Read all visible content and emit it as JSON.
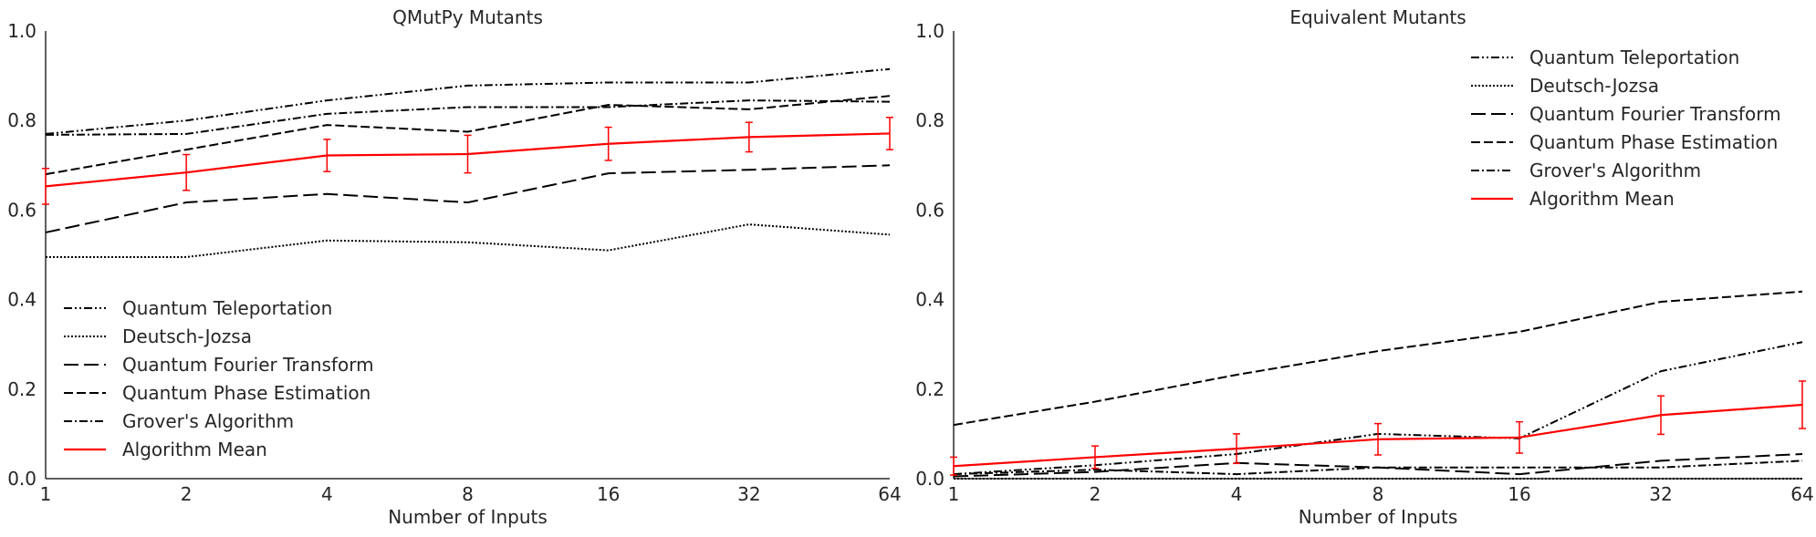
{
  "chart_data": [
    {
      "type": "line",
      "title": "QMutPy Mutants",
      "xlabel": "Number of Inputs",
      "ylabel": "",
      "x": [
        1,
        2,
        4,
        8,
        16,
        32,
        64
      ],
      "x_scale": "log2",
      "ylim": [
        0.0,
        1.0
      ],
      "yticks": [
        "0.0",
        "0.2",
        "0.4",
        "0.6",
        "0.8",
        "1.0"
      ],
      "xticks": [
        "1",
        "2",
        "4",
        "8",
        "16",
        "32",
        "64"
      ],
      "grid": false,
      "legend_position": "lower-left",
      "series": [
        {
          "name": "Quantum Teleportation",
          "style": "dash-dot-dot",
          "color": "#000000",
          "values": [
            0.77,
            0.8,
            0.845,
            0.878,
            0.885,
            0.885,
            0.915
          ]
        },
        {
          "name": "Deutsch-Jozsa",
          "style": "dotted",
          "color": "#000000",
          "values": [
            0.495,
            0.495,
            0.532,
            0.528,
            0.51,
            0.568,
            0.545
          ]
        },
        {
          "name": "Quantum Fourier Transform",
          "style": "long-dash",
          "color": "#000000",
          "values": [
            0.55,
            0.617,
            0.636,
            0.617,
            0.682,
            0.69,
            0.7
          ]
        },
        {
          "name": "Quantum Phase Estimation",
          "style": "dashed",
          "color": "#000000",
          "values": [
            0.68,
            0.735,
            0.79,
            0.775,
            0.835,
            0.825,
            0.855
          ]
        },
        {
          "name": "Grover's Algorithm",
          "style": "dash-dot",
          "color": "#000000",
          "values": [
            0.768,
            0.77,
            0.815,
            0.83,
            0.83,
            0.845,
            0.842
          ]
        },
        {
          "name": "Algorithm Mean",
          "style": "solid",
          "color": "#ff0000",
          "values": [
            0.653,
            0.684,
            0.722,
            0.725,
            0.748,
            0.763,
            0.771
          ],
          "error": [
            0.04,
            0.04,
            0.036,
            0.042,
            0.037,
            0.033,
            0.036
          ]
        }
      ]
    },
    {
      "type": "line",
      "title": "Equivalent Mutants",
      "xlabel": "Number of Inputs",
      "ylabel": "",
      "x": [
        1,
        2,
        4,
        8,
        16,
        32,
        64
      ],
      "x_scale": "log2",
      "ylim": [
        0.0,
        1.0
      ],
      "yticks": [
        "0.0",
        "0.2",
        "0.4",
        "0.6",
        "0.8",
        "1.0"
      ],
      "xticks": [
        "1",
        "2",
        "4",
        "8",
        "16",
        "32",
        "64"
      ],
      "grid": false,
      "legend_position": "upper-right",
      "series": [
        {
          "name": "Quantum Teleportation",
          "style": "dash-dot-dot",
          "color": "#000000",
          "values": [
            0.01,
            0.03,
            0.055,
            0.1,
            0.09,
            0.24,
            0.305
          ]
        },
        {
          "name": "Deutsch-Jozsa",
          "style": "dotted",
          "color": "#000000",
          "values": [
            0.0,
            0.0,
            0.0,
            0.0,
            0.0,
            0.0,
            0.0
          ]
        },
        {
          "name": "Quantum Fourier Transform",
          "style": "long-dash",
          "color": "#000000",
          "values": [
            0.005,
            0.015,
            0.035,
            0.025,
            0.01,
            0.04,
            0.055
          ]
        },
        {
          "name": "Quantum Phase Estimation",
          "style": "dashed",
          "color": "#000000",
          "values": [
            0.12,
            0.172,
            0.232,
            0.285,
            0.328,
            0.395,
            0.418
          ]
        },
        {
          "name": "Grover's Algorithm",
          "style": "dash-dot",
          "color": "#000000",
          "values": [
            0.01,
            0.02,
            0.01,
            0.025,
            0.025,
            0.025,
            0.04
          ]
        },
        {
          "name": "Algorithm Mean",
          "style": "solid",
          "color": "#ff0000",
          "values": [
            0.028,
            0.048,
            0.067,
            0.088,
            0.092,
            0.142,
            0.165
          ],
          "error": [
            0.02,
            0.025,
            0.033,
            0.035,
            0.035,
            0.043,
            0.053
          ]
        }
      ]
    }
  ]
}
